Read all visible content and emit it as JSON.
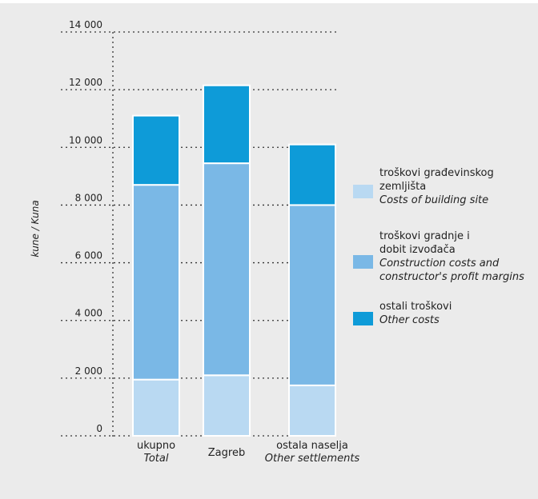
{
  "chart_data": {
    "type": "bar",
    "stacked": true,
    "ylabel": "kune / Kuna",
    "ylim": [
      0,
      14000
    ],
    "yticks": [
      0,
      2000,
      4000,
      6000,
      8000,
      10000,
      12000,
      14000
    ],
    "ytick_labels": [
      "0",
      "2 000",
      "4 000",
      "6 000",
      "8 000",
      "10 000",
      "12 000",
      "14 000"
    ],
    "grid": true,
    "legend_position": "right",
    "categories": [
      {
        "label_hr": "ukupno",
        "label_en": "Total"
      },
      {
        "label_hr": "Zagreb",
        "label_en": ""
      },
      {
        "label_hr": "ostala naselja",
        "label_en": "Other settlements"
      }
    ],
    "series": [
      {
        "name_lines": [
          "troškovi građevinskog",
          "zemljišta"
        ],
        "name_en_lines": [
          "Costs of building site"
        ],
        "color": "#b9d9f2",
        "values": [
          1950,
          2100,
          1750
        ]
      },
      {
        "name_lines": [
          "troškovi gradnje i",
          "dobit izvođača"
        ],
        "name_en_lines": [
          "Construction costs and",
          "constructor's profit margins"
        ],
        "color": "#7ab8e6",
        "values": [
          6750,
          7350,
          6250
        ]
      },
      {
        "name_lines": [
          "ostali troškovi"
        ],
        "name_en_lines": [
          "Other costs"
        ],
        "color": "#0e9bd8",
        "values": [
          2400,
          2700,
          2100
        ]
      }
    ]
  }
}
